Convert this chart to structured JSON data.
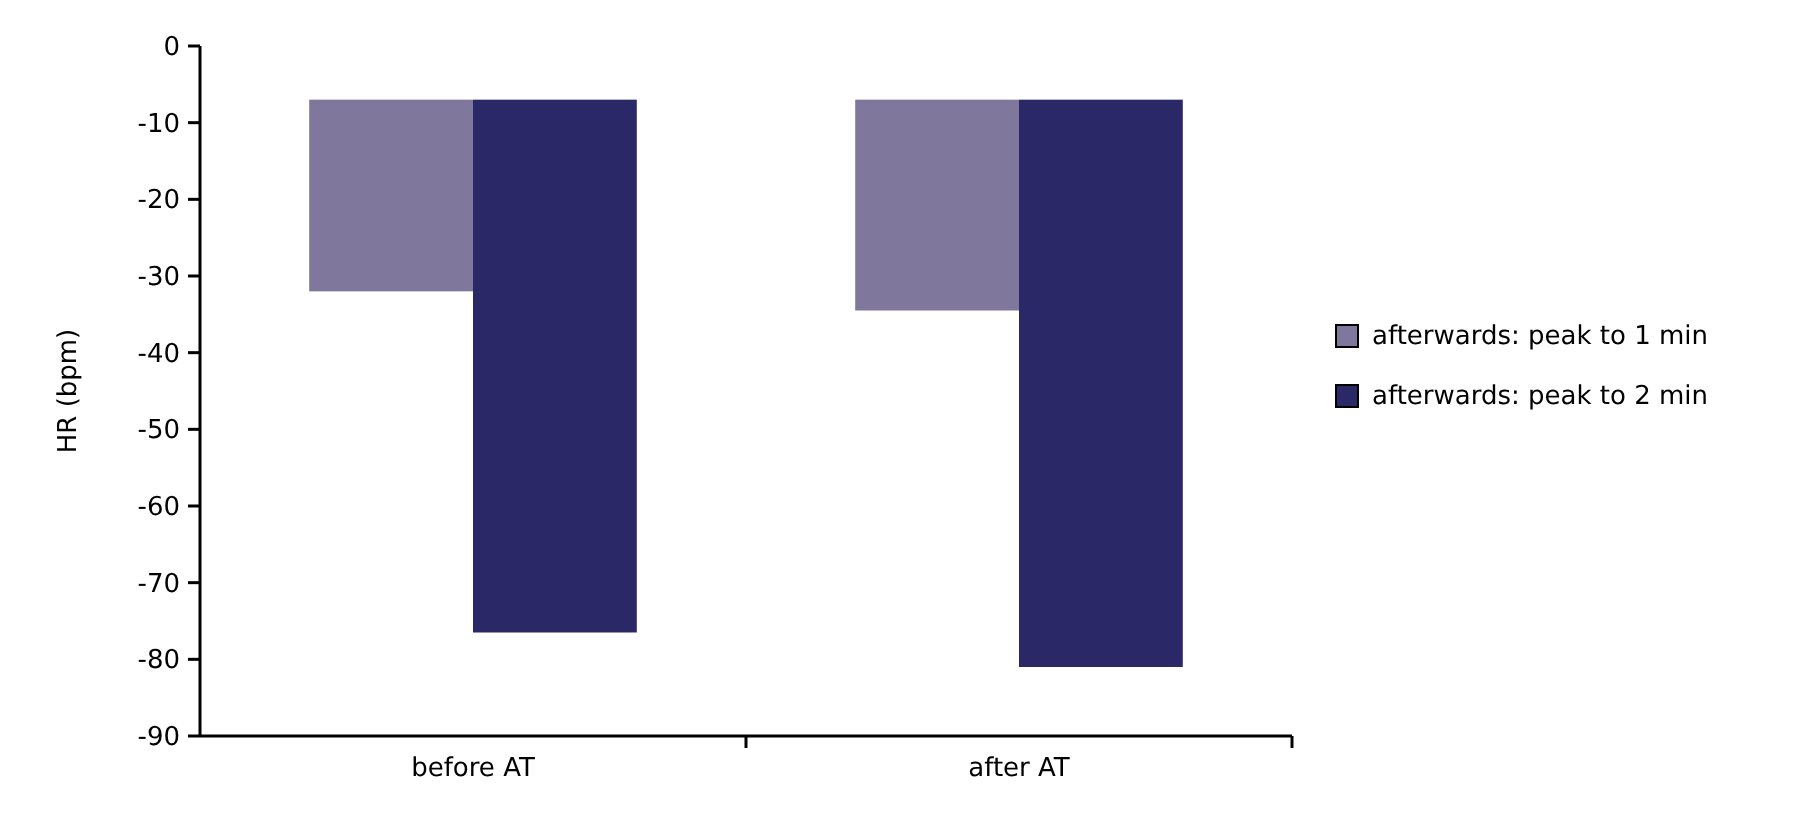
{
  "chart_data": {
    "type": "bar",
    "ylabel": "HR (bpm)",
    "categories": [
      "before AT",
      "after AT"
    ],
    "series": [
      {
        "name": "afterwards: peak to 1 min",
        "color": "#7f789c",
        "base": [
          -7,
          -7
        ],
        "values": [
          -25,
          -27.5
        ]
      },
      {
        "name": "afterwards: peak to 2 min",
        "color": "#2b2868",
        "base": [
          -7,
          -7
        ],
        "values": [
          -69.5,
          -74
        ]
      }
    ],
    "ylim": [
      -90,
      0
    ],
    "yticks": [
      0,
      -10,
      -20,
      -30,
      -40,
      -50,
      -60,
      -70,
      -80,
      -90
    ],
    "grid": false,
    "legend": "right"
  }
}
